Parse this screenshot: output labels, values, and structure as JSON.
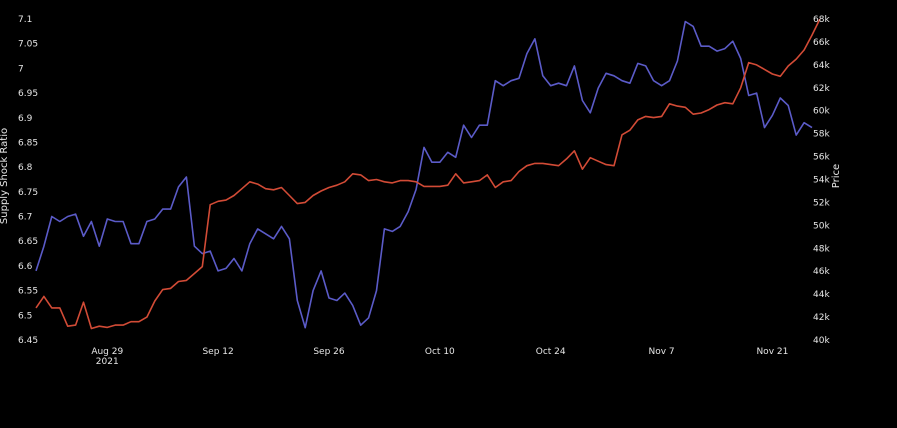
{
  "chart_data": {
    "type": "line",
    "title": "",
    "ylabel": "Supply Shock Ratio",
    "y2label": "Price",
    "x_type": "date",
    "x_range": [
      "2021-08-20",
      "2021-11-26"
    ],
    "x_ticks": [
      {
        "date": "2021-08-29",
        "label": "Aug 29",
        "sublabel": "2021"
      },
      {
        "date": "2021-09-12",
        "label": "Sep 12",
        "sublabel": ""
      },
      {
        "date": "2021-09-26",
        "label": "Sep 26",
        "sublabel": ""
      },
      {
        "date": "2021-10-10",
        "label": "Oct 10",
        "sublabel": ""
      },
      {
        "date": "2021-10-24",
        "label": "Oct 24",
        "sublabel": ""
      },
      {
        "date": "2021-11-07",
        "label": "Nov 7",
        "sublabel": ""
      },
      {
        "date": "2021-11-21",
        "label": "Nov 21",
        "sublabel": ""
      }
    ],
    "ylim": [
      6.45,
      7.1
    ],
    "y_ticks": [
      "6.45",
      "6.5",
      "6.55",
      "6.6",
      "6.65",
      "6.7",
      "6.75",
      "6.8",
      "6.85",
      "6.9",
      "6.95",
      "7",
      "7.05",
      "7.1"
    ],
    "y2lim": [
      40000,
      68000
    ],
    "y2_ticks": [
      {
        "value": 40000,
        "label": "40k"
      },
      {
        "value": 42000,
        "label": "42k"
      },
      {
        "value": 44000,
        "label": "44k"
      },
      {
        "value": 46000,
        "label": "46k"
      },
      {
        "value": 48000,
        "label": "48k"
      },
      {
        "value": 50000,
        "label": "50k"
      },
      {
        "value": 52000,
        "label": "52k"
      },
      {
        "value": 54000,
        "label": "54k"
      },
      {
        "value": 56000,
        "label": "56k"
      },
      {
        "value": 58000,
        "label": "58k"
      },
      {
        "value": 60000,
        "label": "60k"
      },
      {
        "value": 62000,
        "label": "62k"
      },
      {
        "value": 64000,
        "label": "64k"
      },
      {
        "value": 66000,
        "label": "66k"
      },
      {
        "value": 68000,
        "label": "68k"
      }
    ],
    "grid": false,
    "legend": "none",
    "series": [
      {
        "axis": "left",
        "color": "#5b5bc8",
        "points": [
          [
            "2021-08-20",
            6.59
          ],
          [
            "2021-08-21",
            6.64
          ],
          [
            "2021-08-22",
            6.7
          ],
          [
            "2021-08-23",
            6.69
          ],
          [
            "2021-08-24",
            6.7
          ],
          [
            "2021-08-25",
            6.705
          ],
          [
            "2021-08-26",
            6.66
          ],
          [
            "2021-08-27",
            6.69
          ],
          [
            "2021-08-28",
            6.64
          ],
          [
            "2021-08-29",
            6.695
          ],
          [
            "2021-08-30",
            6.69
          ],
          [
            "2021-08-31",
            6.69
          ],
          [
            "2021-09-01",
            6.645
          ],
          [
            "2021-09-02",
            6.645
          ],
          [
            "2021-09-03",
            6.69
          ],
          [
            "2021-09-04",
            6.695
          ],
          [
            "2021-09-05",
            6.715
          ],
          [
            "2021-09-06",
            6.715
          ],
          [
            "2021-09-07",
            6.76
          ],
          [
            "2021-09-08",
            6.78
          ],
          [
            "2021-09-09",
            6.64
          ],
          [
            "2021-09-10",
            6.625
          ],
          [
            "2021-09-11",
            6.63
          ],
          [
            "2021-09-12",
            6.59
          ],
          [
            "2021-09-13",
            6.595
          ],
          [
            "2021-09-14",
            6.615
          ],
          [
            "2021-09-15",
            6.59
          ],
          [
            "2021-09-16",
            6.645
          ],
          [
            "2021-09-17",
            6.675
          ],
          [
            "2021-09-18",
            6.665
          ],
          [
            "2021-09-19",
            6.655
          ],
          [
            "2021-09-20",
            6.68
          ],
          [
            "2021-09-21",
            6.655
          ],
          [
            "2021-09-22",
            6.53
          ],
          [
            "2021-09-23",
            6.475
          ],
          [
            "2021-09-24",
            6.55
          ],
          [
            "2021-09-25",
            6.59
          ],
          [
            "2021-09-26",
            6.535
          ],
          [
            "2021-09-27",
            6.53
          ],
          [
            "2021-09-28",
            6.545
          ],
          [
            "2021-09-29",
            6.52
          ],
          [
            "2021-09-30",
            6.48
          ],
          [
            "2021-10-01",
            6.495
          ],
          [
            "2021-10-02",
            6.55
          ],
          [
            "2021-10-03",
            6.675
          ],
          [
            "2021-10-04",
            6.67
          ],
          [
            "2021-10-05",
            6.68
          ],
          [
            "2021-10-06",
            6.71
          ],
          [
            "2021-10-07",
            6.755
          ],
          [
            "2021-10-08",
            6.84
          ],
          [
            "2021-10-09",
            6.81
          ],
          [
            "2021-10-10",
            6.81
          ],
          [
            "2021-10-11",
            6.83
          ],
          [
            "2021-10-12",
            6.82
          ],
          [
            "2021-10-13",
            6.885
          ],
          [
            "2021-10-14",
            6.86
          ],
          [
            "2021-10-15",
            6.885
          ],
          [
            "2021-10-16",
            6.885
          ],
          [
            "2021-10-17",
            6.975
          ],
          [
            "2021-10-18",
            6.965
          ],
          [
            "2021-10-19",
            6.975
          ],
          [
            "2021-10-20",
            6.98
          ],
          [
            "2021-10-21",
            7.03
          ],
          [
            "2021-10-22",
            7.06
          ],
          [
            "2021-10-23",
            6.985
          ],
          [
            "2021-10-24",
            6.965
          ],
          [
            "2021-10-25",
            6.97
          ],
          [
            "2021-10-26",
            6.965
          ],
          [
            "2021-10-27",
            7.005
          ],
          [
            "2021-10-28",
            6.935
          ],
          [
            "2021-10-29",
            6.91
          ],
          [
            "2021-10-30",
            6.96
          ],
          [
            "2021-10-31",
            6.99
          ],
          [
            "2021-11-01",
            6.985
          ],
          [
            "2021-11-02",
            6.975
          ],
          [
            "2021-11-03",
            6.97
          ],
          [
            "2021-11-04",
            7.01
          ],
          [
            "2021-11-05",
            7.005
          ],
          [
            "2021-11-06",
            6.975
          ],
          [
            "2021-11-07",
            6.965
          ],
          [
            "2021-11-08",
            6.975
          ],
          [
            "2021-11-09",
            7.015
          ],
          [
            "2021-11-10",
            7.095
          ],
          [
            "2021-11-11",
            7.085
          ],
          [
            "2021-11-12",
            7.045
          ],
          [
            "2021-11-13",
            7.045
          ],
          [
            "2021-11-14",
            7.035
          ],
          [
            "2021-11-15",
            7.04
          ],
          [
            "2021-11-16",
            7.055
          ],
          [
            "2021-11-17",
            7.02
          ],
          [
            "2021-11-18",
            6.945
          ],
          [
            "2021-11-19",
            6.95
          ],
          [
            "2021-11-20",
            6.88
          ],
          [
            "2021-11-21",
            6.905
          ],
          [
            "2021-11-22",
            6.94
          ],
          [
            "2021-11-23",
            6.925
          ],
          [
            "2021-11-24",
            6.865
          ],
          [
            "2021-11-25",
            6.89
          ],
          [
            "2021-11-26",
            6.88
          ]
        ]
      },
      {
        "axis": "right",
        "color": "#d24b36",
        "points": [
          [
            "2021-08-20",
            42800
          ],
          [
            "2021-08-21",
            43800
          ],
          [
            "2021-08-22",
            42800
          ],
          [
            "2021-08-23",
            42800
          ],
          [
            "2021-08-24",
            41200
          ],
          [
            "2021-08-25",
            41300
          ],
          [
            "2021-08-26",
            43300
          ],
          [
            "2021-08-27",
            41000
          ],
          [
            "2021-08-28",
            41200
          ],
          [
            "2021-08-29",
            41100
          ],
          [
            "2021-08-30",
            41300
          ],
          [
            "2021-08-31",
            41300
          ],
          [
            "2021-09-01",
            41600
          ],
          [
            "2021-09-02",
            41600
          ],
          [
            "2021-09-03",
            42000
          ],
          [
            "2021-09-04",
            43400
          ],
          [
            "2021-09-05",
            44400
          ],
          [
            "2021-09-06",
            44500
          ],
          [
            "2021-09-07",
            45100
          ],
          [
            "2021-09-08",
            45200
          ],
          [
            "2021-09-09",
            45800
          ],
          [
            "2021-09-10",
            46400
          ],
          [
            "2021-09-11",
            51800
          ],
          [
            "2021-09-12",
            52100
          ],
          [
            "2021-09-13",
            52200
          ],
          [
            "2021-09-14",
            52600
          ],
          [
            "2021-09-15",
            53200
          ],
          [
            "2021-09-16",
            53800
          ],
          [
            "2021-09-17",
            53600
          ],
          [
            "2021-09-18",
            53200
          ],
          [
            "2021-09-19",
            53100
          ],
          [
            "2021-09-20",
            53300
          ],
          [
            "2021-09-21",
            52600
          ],
          [
            "2021-09-22",
            51900
          ],
          [
            "2021-09-23",
            52000
          ],
          [
            "2021-09-24",
            52600
          ],
          [
            "2021-09-25",
            53000
          ],
          [
            "2021-09-26",
            53300
          ],
          [
            "2021-09-27",
            53500
          ],
          [
            "2021-09-28",
            53800
          ],
          [
            "2021-09-29",
            54500
          ],
          [
            "2021-09-30",
            54400
          ],
          [
            "2021-10-01",
            53900
          ],
          [
            "2021-10-02",
            54000
          ],
          [
            "2021-10-03",
            53800
          ],
          [
            "2021-10-04",
            53700
          ],
          [
            "2021-10-05",
            53900
          ],
          [
            "2021-10-06",
            53900
          ],
          [
            "2021-10-07",
            53800
          ],
          [
            "2021-10-08",
            53400
          ],
          [
            "2021-10-09",
            53400
          ],
          [
            "2021-10-10",
            53400
          ],
          [
            "2021-10-11",
            53500
          ],
          [
            "2021-10-12",
            54500
          ],
          [
            "2021-10-13",
            53700
          ],
          [
            "2021-10-14",
            53800
          ],
          [
            "2021-10-15",
            53900
          ],
          [
            "2021-10-16",
            54400
          ],
          [
            "2021-10-17",
            53300
          ],
          [
            "2021-10-18",
            53800
          ],
          [
            "2021-10-19",
            53900
          ],
          [
            "2021-10-20",
            54700
          ],
          [
            "2021-10-21",
            55200
          ],
          [
            "2021-10-22",
            55400
          ],
          [
            "2021-10-23",
            55400
          ],
          [
            "2021-10-24",
            55300
          ],
          [
            "2021-10-25",
            55200
          ],
          [
            "2021-10-26",
            55800
          ],
          [
            "2021-10-27",
            56500
          ],
          [
            "2021-10-28",
            54900
          ],
          [
            "2021-10-29",
            55900
          ],
          [
            "2021-10-30",
            55600
          ],
          [
            "2021-10-31",
            55300
          ],
          [
            "2021-11-01",
            55200
          ],
          [
            "2021-11-02",
            57900
          ],
          [
            "2021-11-03",
            58300
          ],
          [
            "2021-11-04",
            59200
          ],
          [
            "2021-11-05",
            59500
          ],
          [
            "2021-11-06",
            59400
          ],
          [
            "2021-11-07",
            59500
          ],
          [
            "2021-11-08",
            60600
          ],
          [
            "2021-11-09",
            60400
          ],
          [
            "2021-11-10",
            60300
          ],
          [
            "2021-11-11",
            59700
          ],
          [
            "2021-11-12",
            59800
          ],
          [
            "2021-11-13",
            60100
          ],
          [
            "2021-11-14",
            60500
          ],
          [
            "2021-11-15",
            60700
          ],
          [
            "2021-11-16",
            60600
          ],
          [
            "2021-11-17",
            62000
          ],
          [
            "2021-11-18",
            64200
          ],
          [
            "2021-11-19",
            64000
          ],
          [
            "2021-11-20",
            63600
          ],
          [
            "2021-11-21",
            63200
          ],
          [
            "2021-11-22",
            63000
          ],
          [
            "2021-11-23",
            63900
          ],
          [
            "2021-11-24",
            64500
          ],
          [
            "2021-11-25",
            65300
          ],
          [
            "2021-11-26",
            66600
          ],
          [
            "2021-11-27",
            68000
          ]
        ]
      }
    ]
  }
}
